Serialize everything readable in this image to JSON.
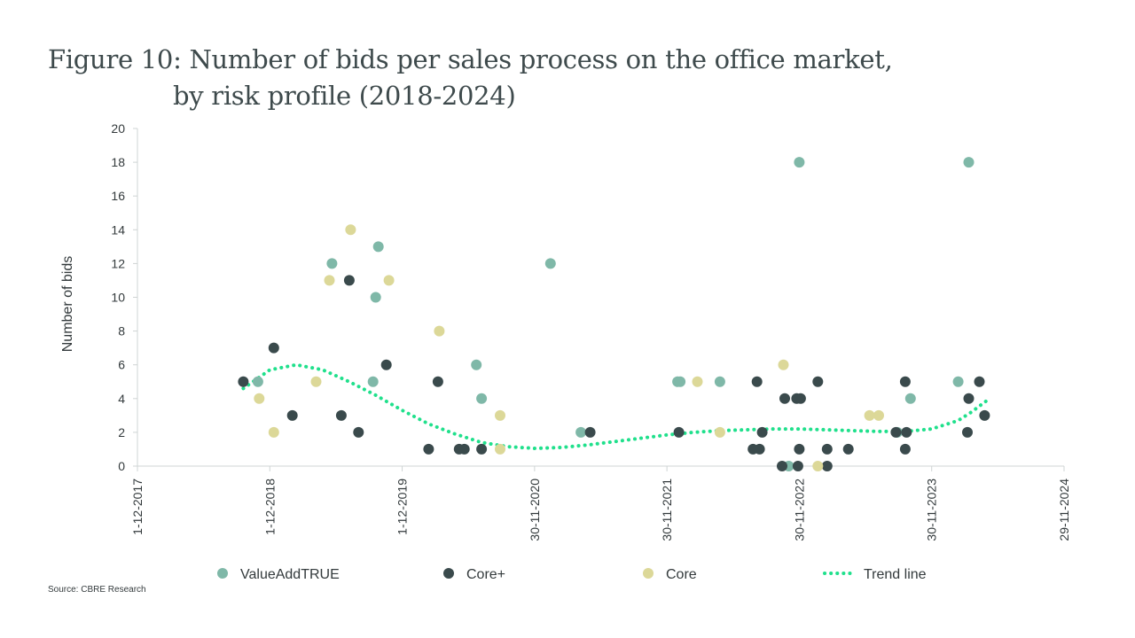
{
  "title": {
    "line1": "Figure 10: Number of bids per sales process on the office market,",
    "line2": "by risk profile (2018-2024)"
  },
  "source": "Source: CBRE Research",
  "colors": {
    "value_add": "#7fb8a8",
    "core_plus": "#3a4a4c",
    "core": "#dcd898",
    "trend": "#20e08c",
    "axis": "#cfd4d4",
    "text": "#333a3c"
  },
  "chart_data": {
    "type": "scatter",
    "title": "Figure 10: Number of bids per sales process on the office market, by risk profile (2018-2024)",
    "xlabel": "",
    "ylabel": "Number of bids",
    "xlim": [
      "1-12-2017",
      "29-11-2024"
    ],
    "ylim": [
      0,
      20
    ],
    "xticks": [
      "1-12-2017",
      "1-12-2018",
      "1-12-2019",
      "30-11-2020",
      "30-11-2021",
      "30-11-2022",
      "30-11-2023",
      "29-11-2024"
    ],
    "yticks": [
      0,
      2,
      4,
      6,
      8,
      10,
      12,
      14,
      16,
      18,
      20
    ],
    "x_unit": "years since 1-12-2017",
    "legend_position": "bottom",
    "series": [
      {
        "name": "ValueAddTRUE",
        "color": "#7fb8a8",
        "points": [
          [
            0.91,
            5
          ],
          [
            1.47,
            12
          ],
          [
            1.78,
            5
          ],
          [
            1.8,
            10
          ],
          [
            1.82,
            13
          ],
          [
            2.56,
            6
          ],
          [
            2.6,
            4
          ],
          [
            3.12,
            12
          ],
          [
            3.35,
            2
          ],
          [
            4.08,
            5
          ],
          [
            4.1,
            5
          ],
          [
            4.4,
            5
          ],
          [
            4.92,
            0
          ],
          [
            5.0,
            18
          ],
          [
            5.74,
            2
          ],
          [
            5.84,
            4
          ],
          [
            6.2,
            5
          ],
          [
            6.28,
            18
          ]
        ]
      },
      {
        "name": "Core+",
        "color": "#3a4a4c",
        "points": [
          [
            0.8,
            5
          ],
          [
            1.03,
            7
          ],
          [
            1.17,
            3
          ],
          [
            1.54,
            3
          ],
          [
            1.6,
            11
          ],
          [
            1.67,
            2
          ],
          [
            1.88,
            6
          ],
          [
            2.2,
            1
          ],
          [
            2.27,
            5
          ],
          [
            2.43,
            1
          ],
          [
            2.47,
            1
          ],
          [
            2.6,
            1
          ],
          [
            3.42,
            2
          ],
          [
            4.09,
            2
          ],
          [
            4.65,
            1
          ],
          [
            4.68,
            5
          ],
          [
            4.7,
            1
          ],
          [
            4.72,
            2
          ],
          [
            4.87,
            0
          ],
          [
            4.89,
            4
          ],
          [
            4.98,
            4
          ],
          [
            4.99,
            0
          ],
          [
            5.0,
            1
          ],
          [
            5.01,
            4
          ],
          [
            5.14,
            5
          ],
          [
            5.21,
            1
          ],
          [
            5.21,
            0
          ],
          [
            5.37,
            1
          ],
          [
            5.73,
            2
          ],
          [
            5.8,
            5
          ],
          [
            5.81,
            2
          ],
          [
            5.8,
            1
          ],
          [
            6.27,
            2
          ],
          [
            6.28,
            4
          ],
          [
            6.36,
            5
          ],
          [
            6.4,
            3
          ]
        ]
      },
      {
        "name": "Core",
        "color": "#dcd898",
        "points": [
          [
            0.92,
            4
          ],
          [
            1.03,
            2
          ],
          [
            1.35,
            5
          ],
          [
            1.45,
            11
          ],
          [
            1.61,
            14
          ],
          [
            1.9,
            11
          ],
          [
            2.28,
            8
          ],
          [
            2.74,
            3
          ],
          [
            2.74,
            1
          ],
          [
            4.23,
            5
          ],
          [
            4.4,
            2
          ],
          [
            4.88,
            6
          ],
          [
            5.14,
            0
          ],
          [
            5.53,
            3
          ],
          [
            5.6,
            3
          ]
        ]
      }
    ],
    "trend_line": {
      "name": "Trend line",
      "color": "#20e08c",
      "points": [
        [
          0.8,
          4.6
        ],
        [
          1.0,
          5.7
        ],
        [
          1.2,
          6.0
        ],
        [
          1.4,
          5.7
        ],
        [
          1.6,
          5.0
        ],
        [
          1.8,
          4.2
        ],
        [
          2.0,
          3.3
        ],
        [
          2.2,
          2.5
        ],
        [
          2.4,
          1.9
        ],
        [
          2.6,
          1.4
        ],
        [
          2.8,
          1.15
        ],
        [
          3.0,
          1.05
        ],
        [
          3.2,
          1.1
        ],
        [
          3.4,
          1.25
        ],
        [
          3.6,
          1.45
        ],
        [
          3.8,
          1.65
        ],
        [
          4.0,
          1.85
        ],
        [
          4.2,
          2.0
        ],
        [
          4.4,
          2.1
        ],
        [
          4.6,
          2.15
        ],
        [
          4.8,
          2.2
        ],
        [
          5.0,
          2.2
        ],
        [
          5.2,
          2.15
        ],
        [
          5.4,
          2.1
        ],
        [
          5.6,
          2.05
        ],
        [
          5.8,
          2.05
        ],
        [
          6.0,
          2.2
        ],
        [
          6.2,
          2.7
        ],
        [
          6.3,
          3.2
        ],
        [
          6.42,
          3.9
        ]
      ]
    }
  }
}
